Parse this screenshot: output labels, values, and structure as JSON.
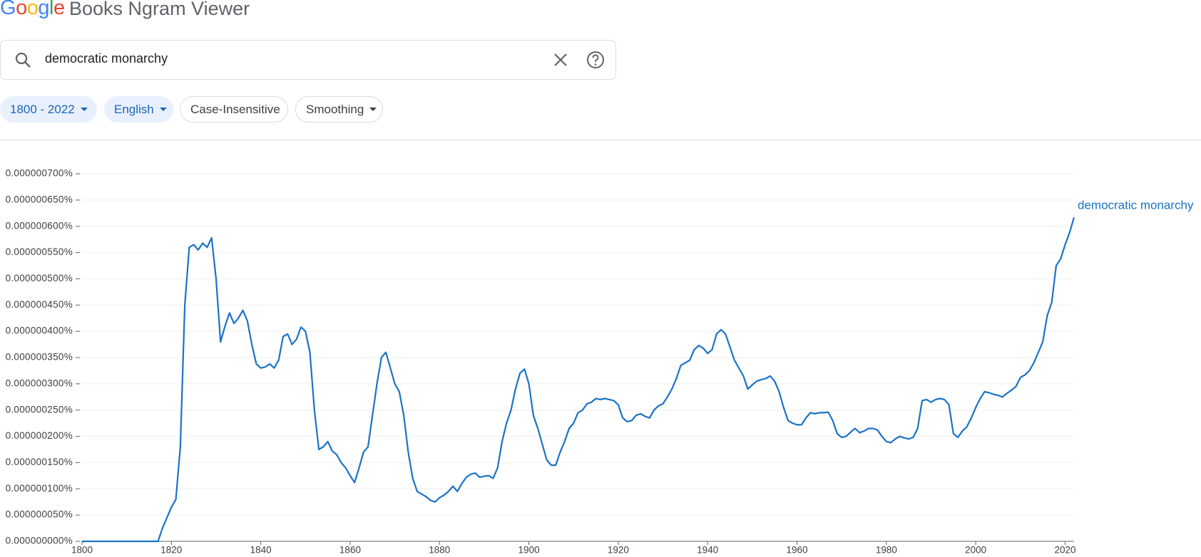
{
  "header": {
    "logo": "Google",
    "title": "Books Ngram Viewer"
  },
  "search": {
    "query": "democratic monarchy"
  },
  "filters": {
    "years": "1800 - 2022",
    "corpus": "English",
    "case": "Case-Insensitive",
    "smoothing": "Smoothing"
  },
  "chart_data": {
    "type": "line",
    "x": [
      1800,
      1817,
      1818,
      1819,
      1820,
      1821,
      1822,
      1823,
      1824,
      1825,
      1826,
      1827,
      1828,
      1829,
      1830,
      1831,
      1832,
      1833,
      1834,
      1835,
      1836,
      1837,
      1838,
      1839,
      1840,
      1841,
      1842,
      1843,
      1844,
      1845,
      1846,
      1847,
      1848,
      1849,
      1850,
      1851,
      1852,
      1853,
      1854,
      1855,
      1856,
      1857,
      1858,
      1859,
      1860,
      1861,
      1862,
      1863,
      1864,
      1865,
      1866,
      1867,
      1868,
      1869,
      1870,
      1871,
      1872,
      1873,
      1874,
      1875,
      1876,
      1877,
      1878,
      1879,
      1880,
      1881,
      1882,
      1883,
      1884,
      1885,
      1886,
      1887,
      1888,
      1889,
      1890,
      1891,
      1892,
      1893,
      1894,
      1895,
      1896,
      1897,
      1898,
      1899,
      1900,
      1901,
      1902,
      1903,
      1904,
      1905,
      1906,
      1907,
      1908,
      1909,
      1910,
      1911,
      1912,
      1913,
      1914,
      1915,
      1916,
      1917,
      1918,
      1919,
      1920,
      1921,
      1922,
      1923,
      1924,
      1925,
      1926,
      1927,
      1928,
      1929,
      1930,
      1931,
      1932,
      1933,
      1934,
      1935,
      1936,
      1937,
      1938,
      1939,
      1940,
      1941,
      1942,
      1943,
      1944,
      1945,
      1946,
      1947,
      1948,
      1949,
      1950,
      1951,
      1952,
      1953,
      1954,
      1955,
      1956,
      1957,
      1958,
      1959,
      1960,
      1961,
      1962,
      1963,
      1964,
      1965,
      1966,
      1967,
      1968,
      1969,
      1970,
      1971,
      1972,
      1973,
      1974,
      1975,
      1976,
      1977,
      1978,
      1979,
      1980,
      1981,
      1982,
      1983,
      1984,
      1985,
      1986,
      1987,
      1988,
      1989,
      1990,
      1991,
      1992,
      1993,
      1994,
      1995,
      1996,
      1997,
      1998,
      1999,
      2000,
      2001,
      2002,
      2003,
      2004,
      2005,
      2006,
      2007,
      2008,
      2009,
      2010,
      2011,
      2012,
      2013,
      2014,
      2015,
      2016,
      2017,
      2018,
      2019,
      2020,
      2021,
      2022
    ],
    "series": [
      {
        "name": "democratic monarchy",
        "color": "#1a73c8",
        "values": [
          0,
          0,
          2.5e-08,
          4.5e-08,
          6.5e-08,
          8e-08,
          1.8e-07,
          4.5e-07,
          5.6e-07,
          5.65e-07,
          5.55e-07,
          5.68e-07,
          5.6e-07,
          5.78e-07,
          5e-07,
          3.8e-07,
          4.1e-07,
          4.35e-07,
          4.15e-07,
          4.25e-07,
          4.4e-07,
          4.2e-07,
          3.75e-07,
          3.38e-07,
          3.3e-07,
          3.32e-07,
          3.38e-07,
          3.3e-07,
          3.45e-07,
          3.9e-07,
          3.95e-07,
          3.75e-07,
          3.85e-07,
          4.08e-07,
          4e-07,
          3.6e-07,
          2.5e-07,
          1.75e-07,
          1.8e-07,
          1.9e-07,
          1.72e-07,
          1.65e-07,
          1.5e-07,
          1.4e-07,
          1.25e-07,
          1.12e-07,
          1.4e-07,
          1.7e-07,
          1.8e-07,
          2.4e-07,
          3e-07,
          3.5e-07,
          3.6e-07,
          3.3e-07,
          3e-07,
          2.85e-07,
          2.4e-07,
          1.7e-07,
          1.2e-07,
          9.5e-08,
          9e-08,
          8.5e-08,
          7.8e-08,
          7.5e-08,
          8.3e-08,
          8.8e-08,
          9.5e-08,
          1.05e-07,
          9.5e-08,
          1.1e-07,
          1.22e-07,
          1.28e-07,
          1.3e-07,
          1.22e-07,
          1.24e-07,
          1.25e-07,
          1.2e-07,
          1.4e-07,
          1.9e-07,
          2.25e-07,
          2.5e-07,
          2.9e-07,
          3.2e-07,
          3.28e-07,
          3e-07,
          2.4e-07,
          2.15e-07,
          1.85e-07,
          1.55e-07,
          1.45e-07,
          1.45e-07,
          1.7e-07,
          1.9e-07,
          2.15e-07,
          2.25e-07,
          2.45e-07,
          2.5e-07,
          2.62e-07,
          2.65e-07,
          2.72e-07,
          2.7e-07,
          2.72e-07,
          2.7e-07,
          2.68e-07,
          2.6e-07,
          2.35e-07,
          2.28e-07,
          2.3e-07,
          2.4e-07,
          2.43e-07,
          2.38e-07,
          2.35e-07,
          2.5e-07,
          2.58e-07,
          2.62e-07,
          2.75e-07,
          2.9e-07,
          3.1e-07,
          3.35e-07,
          3.4e-07,
          3.45e-07,
          3.65e-07,
          3.73e-07,
          3.68e-07,
          3.58e-07,
          3.65e-07,
          3.95e-07,
          4.03e-07,
          3.95e-07,
          3.7e-07,
          3.45e-07,
          3.3e-07,
          3.15e-07,
          2.9e-07,
          2.98e-07,
          3.05e-07,
          3.08e-07,
          3.1e-07,
          3.15e-07,
          3.05e-07,
          2.85e-07,
          2.55e-07,
          2.3e-07,
          2.25e-07,
          2.22e-07,
          2.22e-07,
          2.35e-07,
          2.45e-07,
          2.43e-07,
          2.45e-07,
          2.45e-07,
          2.46e-07,
          2.3e-07,
          2.05e-07,
          1.98e-07,
          2e-07,
          2.08e-07,
          2.15e-07,
          2.07e-07,
          2.1e-07,
          2.15e-07,
          2.15e-07,
          2.12e-07,
          2e-07,
          1.9e-07,
          1.88e-07,
          1.95e-07,
          2e-07,
          1.97e-07,
          1.95e-07,
          1.98e-07,
          2.15e-07,
          2.68e-07,
          2.7e-07,
          2.65e-07,
          2.7e-07,
          2.72e-07,
          2.7e-07,
          2.6e-07,
          2.05e-07,
          1.98e-07,
          2.1e-07,
          2.18e-07,
          2.35e-07,
          2.55e-07,
          2.72e-07,
          2.85e-07,
          2.83e-07,
          2.8e-07,
          2.78e-07,
          2.75e-07,
          2.82e-07,
          2.88e-07,
          2.95e-07,
          3.12e-07,
          3.17e-07,
          3.25e-07,
          3.4e-07,
          3.6e-07,
          3.8e-07,
          4.3e-07,
          4.55e-07,
          5.25e-07,
          5.38e-07,
          5.65e-07,
          5.88e-07,
          6.17e-07
        ]
      }
    ],
    "xlim": [
      1800,
      2022
    ],
    "xticks": [
      1800,
      1820,
      1840,
      1860,
      1880,
      1900,
      1920,
      1940,
      1960,
      1980,
      2000,
      2020
    ],
    "ylim": [
      0,
      7e-07
    ],
    "yticks": [
      {
        "value": 0,
        "label": "0.000000000%"
      },
      {
        "value": 5e-08,
        "label": "0.000000050%"
      },
      {
        "value": 1e-07,
        "label": "0.000000100%"
      },
      {
        "value": 1.5e-07,
        "label": "0.000000150%"
      },
      {
        "value": 2e-07,
        "label": "0.000000200%"
      },
      {
        "value": 2.5e-07,
        "label": "0.000000250%"
      },
      {
        "value": 3e-07,
        "label": "0.000000300%"
      },
      {
        "value": 3.5e-07,
        "label": "0.000000350%"
      },
      {
        "value": 4e-07,
        "label": "0.000000400%"
      },
      {
        "value": 4.5e-07,
        "label": "0.000000450%"
      },
      {
        "value": 5e-07,
        "label": "0.000000500%"
      },
      {
        "value": 5.5e-07,
        "label": "0.000000550%"
      },
      {
        "value": 6e-07,
        "label": "0.000000600%"
      },
      {
        "value": 6.5e-07,
        "label": "0.000000650%"
      },
      {
        "value": 7e-07,
        "label": "0.000000700%"
      }
    ],
    "grid": true
  }
}
